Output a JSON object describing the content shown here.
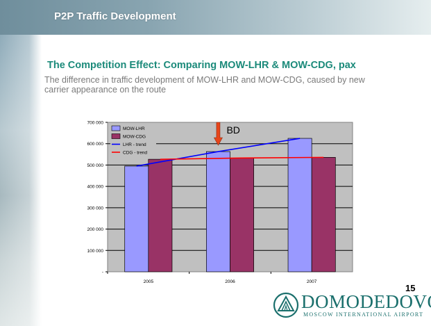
{
  "header": {
    "title": "P2P Traffic Development"
  },
  "main": {
    "heading": "The Competition Effect: Comparing MOW-LHR & MOW-CDG, pax",
    "subtext": "The difference in traffic development of MOW-LHR and MOW-CDG, caused by new carrier appearance on the route"
  },
  "chart_data": {
    "type": "bar",
    "categories": [
      "2005",
      "2006",
      "2007"
    ],
    "series": [
      {
        "name": "MOW-LHR",
        "type": "bar",
        "values": [
          495000,
          563000,
          625000
        ],
        "color": "#9999ff"
      },
      {
        "name": "MOW-CDG",
        "type": "bar",
        "values": [
          527000,
          533000,
          536000
        ],
        "color": "#993366"
      },
      {
        "name": "LHR - trend",
        "type": "line",
        "values": [
          495000,
          563000,
          625000
        ],
        "color": "#0000ff"
      },
      {
        "name": "CDG - trend",
        "type": "line",
        "values": [
          527000,
          533000,
          536000
        ],
        "color": "#ff0000"
      }
    ],
    "yticks": [
      "-",
      "100 000",
      "200 000",
      "300 000",
      "400 000",
      "500 000",
      "600 000",
      "700 000"
    ],
    "ylim": [
      0,
      700000
    ],
    "grid": true,
    "legend": "top-left",
    "annotation": {
      "text": "BD",
      "category": "2006"
    },
    "plot_bg": "#c0c0c0"
  },
  "page": {
    "number": "15"
  },
  "logo": {
    "name": "DOMODEDOVO",
    "subtitle": "MOSCOW INTERNATIONAL AIRPORT"
  }
}
